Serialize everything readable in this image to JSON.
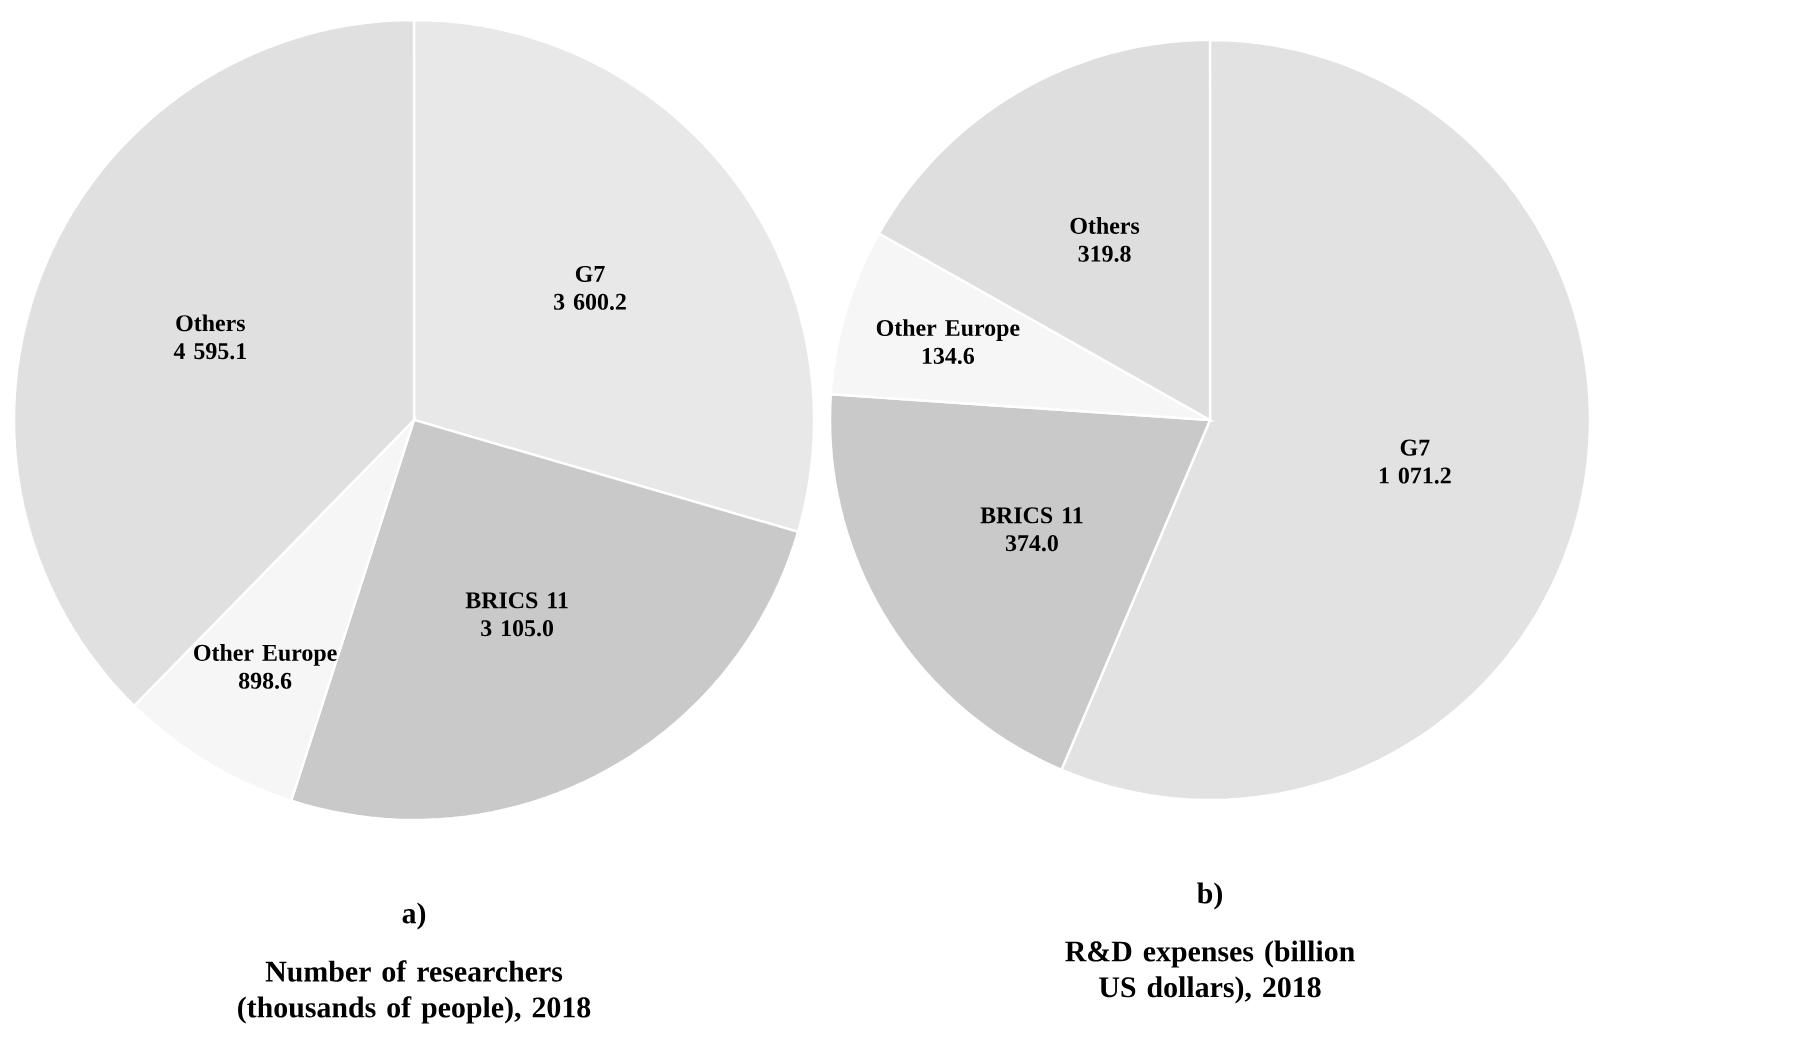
{
  "chart_data": [
    {
      "type": "pie",
      "title": "a)",
      "subtitle": "Number of researchers (thousands of people), 2018",
      "categories": [
        "G7",
        "BRICS 11",
        "Other Europe",
        "Others"
      ],
      "values": [
        3600.2,
        3105.0,
        898.6,
        4595.1
      ],
      "value_labels": [
        "3 600.2",
        "3 105.0",
        "898.6",
        "4 595.1"
      ],
      "colors": [
        "#e8e8e8",
        "#c9c9c9",
        "#f6f6f6",
        "#e0e0e0"
      ]
    },
    {
      "type": "pie",
      "title": "b)",
      "subtitle": "R&D expenses (billion US dollars), 2018",
      "categories": [
        "G7",
        "BRICS 11",
        "Other Europe",
        "Others"
      ],
      "values": [
        1071.2,
        374.0,
        134.6,
        319.8
      ],
      "value_labels": [
        "1 071.2",
        "374.0",
        "134.6",
        "319.8"
      ],
      "colors": [
        "#e2e2e2",
        "#c9c9c9",
        "#f6f6f6",
        "#dedede"
      ]
    }
  ]
}
